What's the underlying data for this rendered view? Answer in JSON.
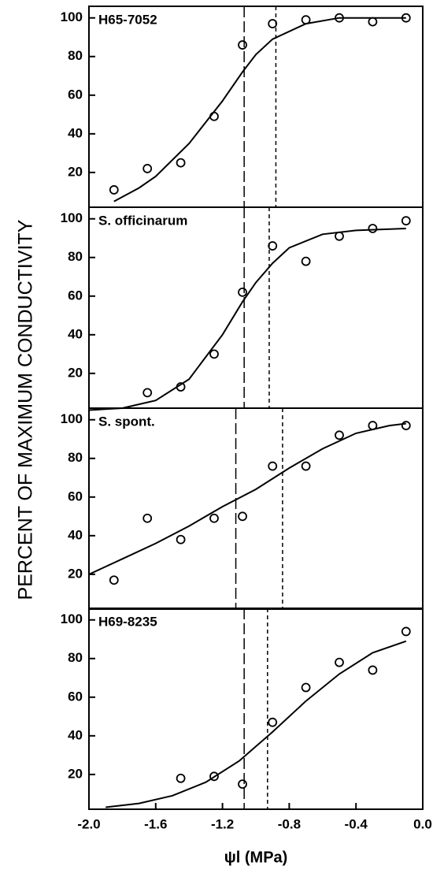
{
  "chart_data": [
    {
      "type": "scatter",
      "label": "H65-7052",
      "ylabel": "PERCENT OF MAXIMUM CONDUCTIVITY",
      "xlim": [
        -2,
        0
      ],
      "ylim": [
        2,
        106
      ],
      "yticks": [
        20,
        40,
        60,
        80,
        100
      ],
      "points": {
        "x": [
          -1.85,
          -1.65,
          -1.45,
          -1.25,
          -1.08,
          -0.9,
          -0.7,
          -0.5,
          -0.3,
          -0.1
        ],
        "y": [
          11,
          22,
          25,
          49,
          86,
          97,
          99,
          100,
          98,
          100
        ]
      },
      "fit": {
        "x": [
          -1.85,
          -1.7,
          -1.6,
          -1.4,
          -1.2,
          -1.08,
          -1.0,
          -0.9,
          -0.7,
          -0.5,
          -0.3,
          -0.1
        ],
        "y": [
          5,
          12,
          18,
          35,
          57,
          72,
          81,
          89,
          97,
          100,
          100,
          100
        ]
      },
      "vlines": {
        "long_dash": -1.07,
        "short_dash": -0.88
      }
    },
    {
      "type": "scatter",
      "label": "S. officinarum",
      "xlim": [
        -2,
        0
      ],
      "ylim": [
        2,
        106
      ],
      "yticks": [
        20,
        40,
        60,
        80,
        100
      ],
      "points": {
        "x": [
          -1.65,
          -1.45,
          -1.25,
          -1.08,
          -0.9,
          -0.7,
          -0.5,
          -0.3,
          -0.1
        ],
        "y": [
          10,
          13,
          30,
          62,
          86,
          78,
          91,
          95,
          99
        ]
      },
      "fit": {
        "x": [
          -2.0,
          -1.8,
          -1.6,
          -1.4,
          -1.2,
          -1.08,
          -1.0,
          -0.9,
          -0.8,
          -0.6,
          -0.4,
          -0.1
        ],
        "y": [
          1,
          2,
          6,
          17,
          40,
          57,
          67,
          77,
          85,
          92,
          94,
          95
        ]
      },
      "vlines": {
        "long_dash": -1.07,
        "short_dash": -0.92
      }
    },
    {
      "type": "scatter",
      "label": "S. spont.",
      "xlim": [
        -2,
        0
      ],
      "ylim": [
        2,
        106
      ],
      "yticks": [
        20,
        40,
        60,
        80,
        100
      ],
      "points": {
        "x": [
          -1.85,
          -1.65,
          -1.45,
          -1.25,
          -1.08,
          -0.9,
          -0.7,
          -0.5,
          -0.3,
          -0.1
        ],
        "y": [
          17,
          49,
          38,
          49,
          50,
          76,
          76,
          92,
          97,
          97
        ]
      },
      "fit": {
        "x": [
          -2.0,
          -1.8,
          -1.6,
          -1.4,
          -1.2,
          -1.0,
          -0.8,
          -0.6,
          -0.4,
          -0.2,
          -0.1
        ],
        "y": [
          20,
          28,
          36,
          45,
          55,
          64,
          75,
          85,
          93,
          97,
          98
        ]
      },
      "vlines": {
        "long_dash": -1.12,
        "short_dash": -0.84
      }
    },
    {
      "type": "scatter",
      "label": "H69-8235",
      "xlabel": "ψl (MPa)",
      "xlim": [
        -2,
        0
      ],
      "ylim": [
        2,
        106
      ],
      "yticks": [
        20,
        40,
        60,
        80,
        100
      ],
      "xticks": [
        {
          "value": -2,
          "label": "-2.0"
        },
        -1.6,
        -1.2,
        -0.8,
        -0.4,
        {
          "value": 0,
          "label": "0.0"
        }
      ],
      "points": {
        "x": [
          -1.45,
          -1.25,
          -1.08,
          -0.9,
          -0.7,
          -0.5,
          -0.3,
          -0.1
        ],
        "y": [
          18,
          19,
          15,
          47,
          65,
          78,
          74,
          94
        ]
      },
      "fit": {
        "x": [
          -1.9,
          -1.7,
          -1.5,
          -1.3,
          -1.1,
          -0.9,
          -0.7,
          -0.5,
          -0.3,
          -0.1
        ],
        "y": [
          3,
          5,
          9,
          16,
          27,
          42,
          58,
          72,
          83,
          89
        ]
      },
      "vlines": {
        "long_dash": -1.07,
        "short_dash": -0.93
      }
    }
  ]
}
